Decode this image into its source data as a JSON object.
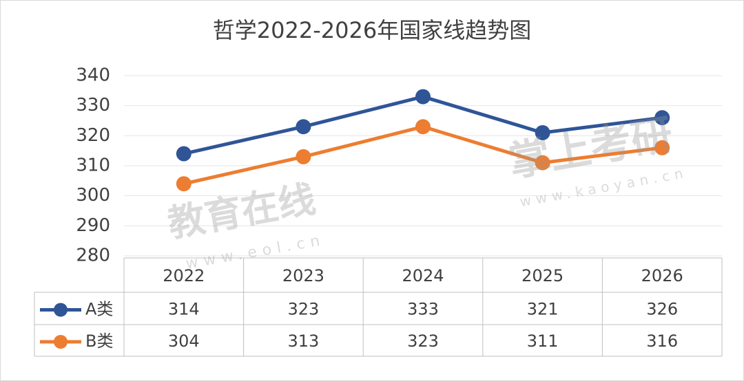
{
  "chart_data": {
    "type": "line",
    "title": "哲学2022-2026年国家线趋势图",
    "categories": [
      "2022",
      "2023",
      "2024",
      "2025",
      "2026"
    ],
    "series": [
      {
        "name": "A类",
        "color": "#2f5597",
        "values": [
          314,
          323,
          333,
          321,
          326
        ]
      },
      {
        "name": "B类",
        "color": "#ed7d31",
        "values": [
          304,
          313,
          323,
          311,
          316
        ]
      }
    ],
    "ylim": [
      280,
      340
    ],
    "yticks": [
      280,
      290,
      300,
      310,
      320,
      330,
      340
    ],
    "grid": true,
    "watermarks": [
      "教育在线",
      "www.eol.cn",
      "掌上考研",
      "www.kaoyan.cn"
    ]
  }
}
